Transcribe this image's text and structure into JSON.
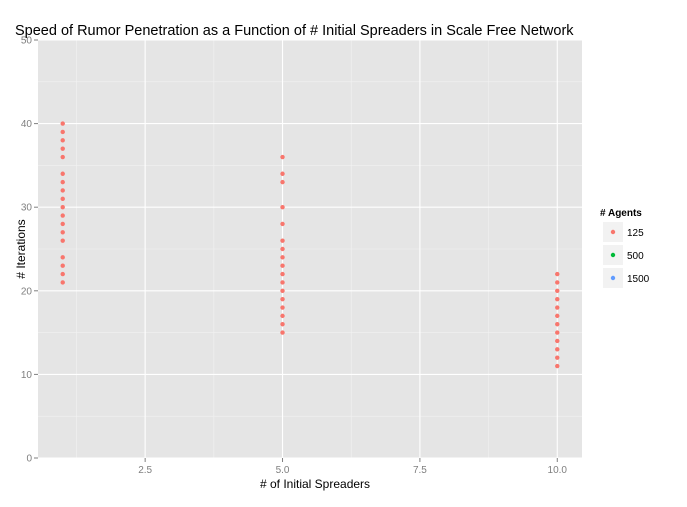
{
  "chart_data": {
    "type": "scatter",
    "title": "Speed of Rumor Penetration as a Function of # Initial Spreaders in Scale Free Network",
    "xlabel": "# of Initial Spreaders",
    "ylabel": "# Iterations",
    "xlim": [
      0.55,
      10.45
    ],
    "ylim": [
      0,
      50
    ],
    "x_ticks": [
      2.5,
      5.0,
      7.5,
      10.0
    ],
    "x_tick_labels": [
      "2.5",
      "5.0",
      "7.5",
      "10.0"
    ],
    "y_ticks": [
      0,
      10,
      20,
      30,
      40,
      50
    ],
    "y_tick_labels": [
      "0",
      "10",
      "20",
      "30",
      "40",
      "50"
    ],
    "grid": true,
    "legend": {
      "title": "# Agents",
      "placement": "right",
      "entries": [
        "125",
        "500",
        "1500"
      ]
    },
    "series": [
      {
        "name": "125",
        "color": "#F8766D",
        "points": [
          [
            1,
            21
          ],
          [
            1,
            22
          ],
          [
            1,
            23
          ],
          [
            1,
            24
          ],
          [
            1,
            26
          ],
          [
            1,
            27
          ],
          [
            1,
            28
          ],
          [
            1,
            29
          ],
          [
            1,
            30
          ],
          [
            1,
            31
          ],
          [
            1,
            32
          ],
          [
            1,
            33
          ],
          [
            1,
            34
          ],
          [
            1,
            36
          ],
          [
            1,
            37
          ],
          [
            1,
            38
          ],
          [
            1,
            39
          ],
          [
            1,
            40
          ],
          [
            5,
            15
          ],
          [
            5,
            16
          ],
          [
            5,
            17
          ],
          [
            5,
            18
          ],
          [
            5,
            19
          ],
          [
            5,
            20
          ],
          [
            5,
            21
          ],
          [
            5,
            22
          ],
          [
            5,
            23
          ],
          [
            5,
            24
          ],
          [
            5,
            25
          ],
          [
            5,
            26
          ],
          [
            5,
            28
          ],
          [
            5,
            30
          ],
          [
            5,
            33
          ],
          [
            5,
            34
          ],
          [
            5,
            36
          ],
          [
            10,
            11
          ],
          [
            10,
            12
          ],
          [
            10,
            13
          ],
          [
            10,
            14
          ],
          [
            10,
            15
          ],
          [
            10,
            16
          ],
          [
            10,
            17
          ],
          [
            10,
            18
          ],
          [
            10,
            19
          ],
          [
            10,
            20
          ],
          [
            10,
            21
          ],
          [
            10,
            22
          ]
        ]
      },
      {
        "name": "500",
        "color": "#00BA38",
        "points": []
      },
      {
        "name": "1500",
        "color": "#619CFF",
        "points": []
      }
    ]
  },
  "colors": {
    "panel_background": "#E5E5E5",
    "grid_major": "#FFFFFF",
    "grid_minor": "#F2F2F2",
    "axis_text": "#7F7F7F"
  }
}
